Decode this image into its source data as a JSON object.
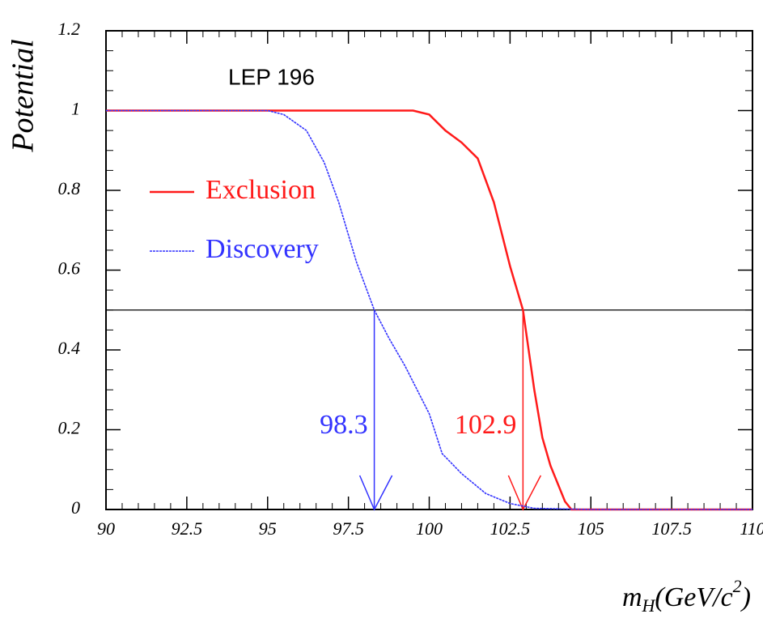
{
  "chart_data": {
    "type": "line",
    "annotation_text": "LEP 196",
    "y_label": "Potential",
    "x_label_parts": [
      "m",
      "H",
      "(GeV/c",
      "2",
      ")"
    ],
    "xlim": [
      90,
      110
    ],
    "ylim": [
      0,
      1.2
    ],
    "xticks": [
      90,
      92.5,
      95,
      97.5,
      100,
      102.5,
      105,
      107.5,
      110
    ],
    "yticks": [
      0,
      0.2,
      0.4,
      0.6,
      0.8,
      1,
      1.2
    ],
    "hline": 0.5,
    "series": [
      {
        "name": "Exclusion",
        "color": "#ff1a1a",
        "x": [
          90,
          95,
          99.5,
          100,
          100.5,
          101,
          101.5,
          102,
          102.5,
          102.9,
          103.25,
          103.5,
          103.75,
          104,
          104.2,
          104.4,
          105,
          110
        ],
        "values": [
          1,
          1,
          1,
          0.99,
          0.95,
          0.92,
          0.88,
          0.77,
          0.61,
          0.5,
          0.3,
          0.18,
          0.11,
          0.06,
          0.02,
          0,
          0,
          0
        ]
      },
      {
        "name": "Discovery",
        "color": "#3333ff",
        "x": [
          90,
          95,
          95.5,
          96.2,
          96.75,
          97.2,
          97.75,
          98.3,
          98.75,
          99.25,
          99.75,
          100,
          100.4,
          101,
          101.75,
          102.5,
          103.25,
          105,
          110
        ],
        "values": [
          1,
          1,
          0.99,
          0.95,
          0.87,
          0.77,
          0.62,
          0.5,
          0.43,
          0.36,
          0.28,
          0.24,
          0.14,
          0.09,
          0.04,
          0.015,
          0.003,
          0,
          0
        ]
      }
    ],
    "annotations": [
      {
        "value": 98.3,
        "color": "#3333ff"
      },
      {
        "value": 102.9,
        "color": "#ff1a1a"
      }
    ]
  }
}
